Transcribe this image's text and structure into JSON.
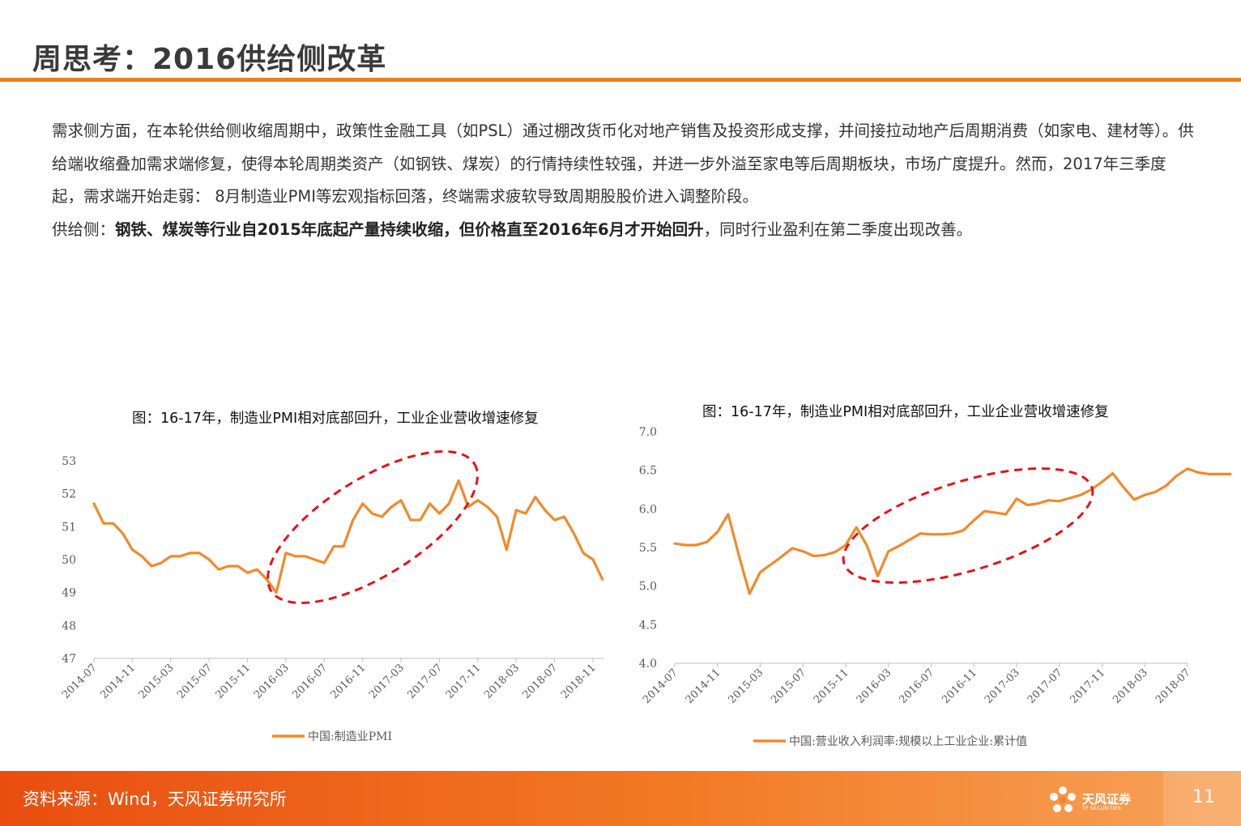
{
  "header": {
    "title": "周思考：2016供给侧改革"
  },
  "body": {
    "paragraph1": "需求侧方面，在本轮供给侧收缩周期中，政策性金融工具（如PSL）通过棚改货币化对地产销售及投资形成支撑，并间接拉动地产后周期消费（如家电、建材等）。供给端收缩叠加需求端修复，使得本轮周期类资产（如钢铁、煤炭）的行情持续性较强，并进一步外溢至家电等后周期板块，市场广度提升。然而，2017年三季度起，需求端开始走弱： 8月制造业PMI等宏观指标回落，终端需求疲软导致周期股股价进入调整阶段。",
    "p2_prefix": "供给侧：",
    "p2_bold": "钢铁、煤炭等行业自2015年底起产量持续收缩，但价格直至2016年6月才开始回升",
    "p2_suffix": "，同时行业盈利在第二季度出现改善。"
  },
  "chart_data": [
    {
      "type": "line",
      "title": "图：16-17年，制造业PMI相对底部回升，工业企业营收增速修复",
      "xlabel": "",
      "ylabel": "",
      "ylim": [
        47,
        53
      ],
      "yticks": [
        "47",
        "48",
        "49",
        "50",
        "51",
        "52",
        "53"
      ],
      "xticks": [
        "2014-07",
        "2014-11",
        "2015-03",
        "2015-07",
        "2015-11",
        "2016-03",
        "2016-07",
        "2016-11",
        "2017-03",
        "2017-07",
        "2017-11",
        "2018-03",
        "2018-07",
        "2018-11"
      ],
      "grid": false,
      "legend_position": "bottom",
      "series": [
        {
          "name": "中国:制造业PMI",
          "color": "#f08a2c",
          "x": [
            "2014-07",
            "2014-08",
            "2014-09",
            "2014-10",
            "2014-11",
            "2014-12",
            "2015-01",
            "2015-02",
            "2015-03",
            "2015-04",
            "2015-05",
            "2015-06",
            "2015-07",
            "2015-08",
            "2015-09",
            "2015-10",
            "2015-11",
            "2015-12",
            "2016-01",
            "2016-02",
            "2016-03",
            "2016-04",
            "2016-05",
            "2016-06",
            "2016-07",
            "2016-08",
            "2016-09",
            "2016-10",
            "2016-11",
            "2016-12",
            "2017-01",
            "2017-02",
            "2017-03",
            "2017-04",
            "2017-05",
            "2017-06",
            "2017-07",
            "2017-08",
            "2017-09",
            "2017-10",
            "2017-11",
            "2017-12",
            "2018-01",
            "2018-02",
            "2018-03",
            "2018-04",
            "2018-05",
            "2018-06",
            "2018-07",
            "2018-08",
            "2018-09",
            "2018-10",
            "2018-11",
            "2018-12"
          ],
          "values": [
            51.7,
            51.1,
            51.1,
            50.8,
            50.3,
            50.1,
            49.8,
            49.9,
            50.1,
            50.1,
            50.2,
            50.2,
            50.0,
            49.7,
            49.8,
            49.8,
            49.6,
            49.7,
            49.4,
            49.0,
            50.2,
            50.1,
            50.1,
            50.0,
            49.9,
            50.4,
            50.4,
            51.2,
            51.7,
            51.4,
            51.3,
            51.6,
            51.8,
            51.2,
            51.2,
            51.7,
            51.4,
            51.7,
            52.4,
            51.6,
            51.8,
            51.6,
            51.3,
            50.3,
            51.5,
            51.4,
            51.9,
            51.5,
            51.2,
            51.3,
            50.8,
            50.2,
            50.0,
            49.4
          ]
        }
      ]
    },
    {
      "type": "line",
      "title": "图：16-17年，制造业PMI相对底部回升，工业企业营收增速修复",
      "xlabel": "",
      "ylabel": "",
      "ylim": [
        4.0,
        7.0
      ],
      "yticks": [
        "4.0",
        "4.5",
        "5.0",
        "5.5",
        "6.0",
        "6.5",
        "7.0"
      ],
      "xticks": [
        "2014-07",
        "2014-11",
        "2015-03",
        "2015-07",
        "2015-11",
        "2016-03",
        "2016-07",
        "2016-11",
        "2017-03",
        "2017-07",
        "2017-11",
        "2018-03",
        "2018-07"
      ],
      "grid": false,
      "legend_position": "bottom",
      "series": [
        {
          "name": "中国:营业收入利润率:规模以上工业企业:累计值",
          "color": "#f08a2c",
          "x": [
            "2014-07",
            "2014-08",
            "2014-09",
            "2014-10",
            "2014-11",
            "2014-12",
            "2015-01",
            "2015-02",
            "2015-03",
            "2015-04",
            "2015-05",
            "2015-06",
            "2015-07",
            "2015-08",
            "2015-09",
            "2015-10",
            "2015-11",
            "2015-12",
            "2016-01",
            "2016-02",
            "2016-03",
            "2016-04",
            "2016-05",
            "2016-06",
            "2016-07",
            "2016-08",
            "2016-09",
            "2016-10",
            "2016-11",
            "2016-12",
            "2017-01",
            "2017-02",
            "2017-03",
            "2017-04",
            "2017-05",
            "2017-06",
            "2017-07",
            "2017-08",
            "2017-09",
            "2017-10",
            "2017-11",
            "2017-12",
            "2018-01",
            "2018-02",
            "2018-03",
            "2018-04",
            "2018-05",
            "2018-06",
            "2018-07",
            "2018-08",
            "2018-09",
            "2018-10",
            "2018-11"
          ],
          "values": [
            5.55,
            5.53,
            5.53,
            5.57,
            5.7,
            5.93,
            5.4,
            4.9,
            5.18,
            5.28,
            5.38,
            5.49,
            5.45,
            5.39,
            5.4,
            5.44,
            5.53,
            5.76,
            5.52,
            5.13,
            5.45,
            5.52,
            5.6,
            5.68,
            5.67,
            5.67,
            5.68,
            5.72,
            5.85,
            5.97,
            5.95,
            5.93,
            6.13,
            6.05,
            6.07,
            6.11,
            6.1,
            6.14,
            6.18,
            6.25,
            6.35,
            6.46,
            6.28,
            6.12,
            6.18,
            6.22,
            6.3,
            6.43,
            6.52,
            6.47,
            6.45,
            6.45,
            6.45
          ]
        }
      ]
    }
  ],
  "footer": {
    "source": "资料来源：Wind，天风证券研究所",
    "logo_name": "天风证券",
    "logo_sub": "TF SECURITIES",
    "page_number": "11"
  },
  "colors": {
    "accent": "#f07d1e",
    "series": "#f08a2c",
    "highlight_ellipse": "#e3131b",
    "footer": "#ec5a14"
  }
}
